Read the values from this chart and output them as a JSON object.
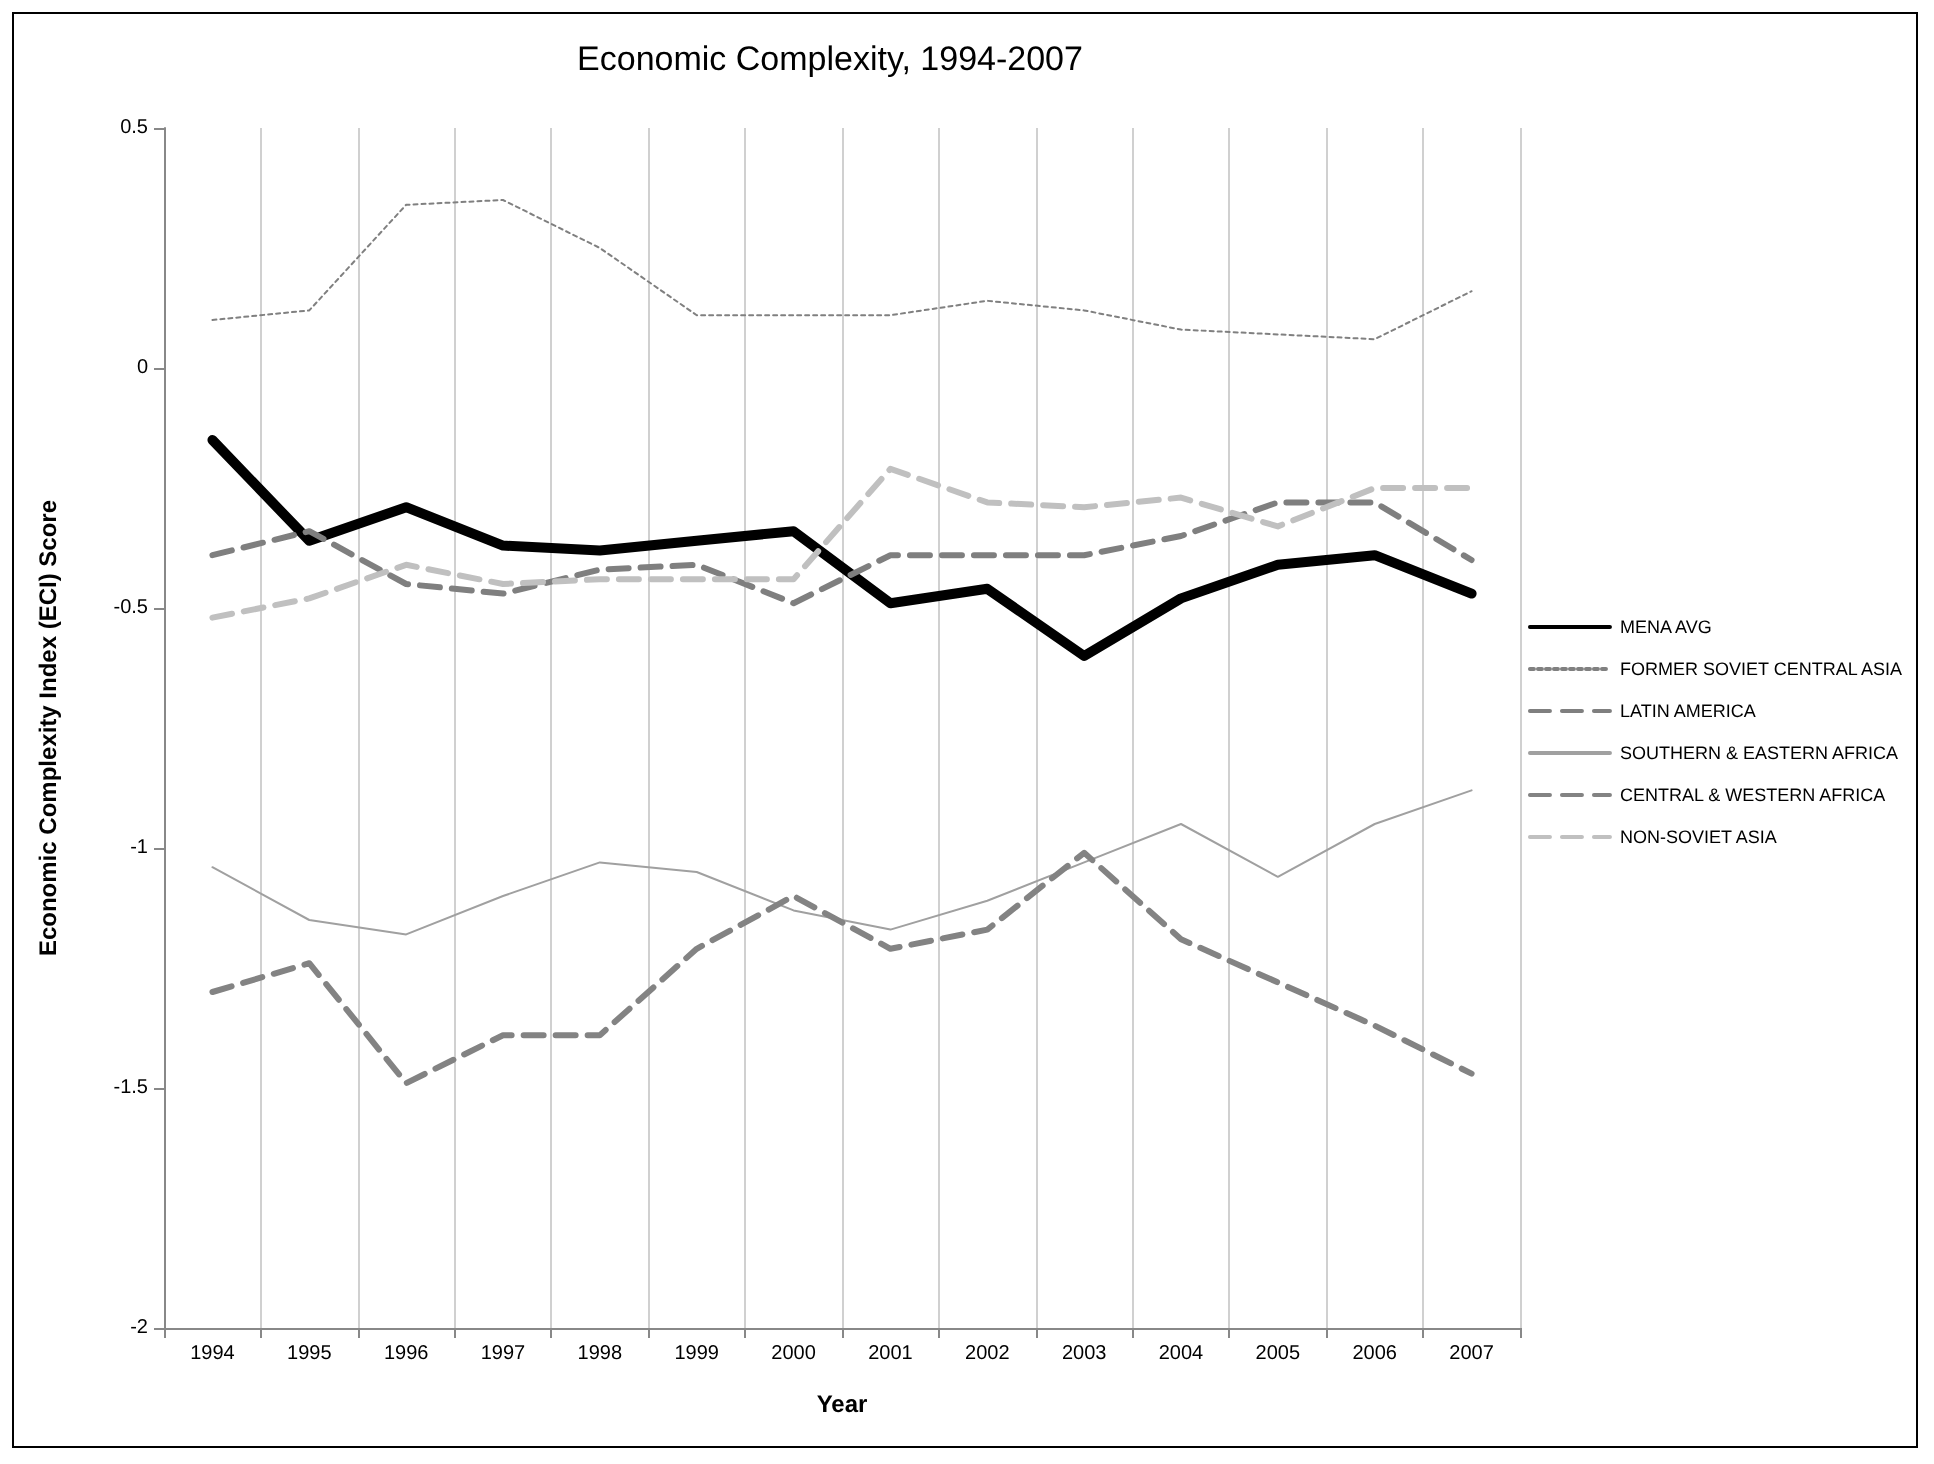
{
  "chart_data": {
    "type": "line",
    "title": "Economic Complexity, 1994-2007",
    "xlabel": "Year",
    "ylabel": "Economic Complexity Index (ECI) Score",
    "categories": [
      "1994",
      "1995",
      "1996",
      "1997",
      "1998",
      "1999",
      "2000",
      "2001",
      "2002",
      "2003",
      "2004",
      "2005",
      "2006",
      "2007"
    ],
    "ylim": [
      -2,
      0.5
    ],
    "yticks": [
      -2,
      -1.5,
      -1,
      -0.5,
      0,
      0.5
    ],
    "grid": "x",
    "legend": "right",
    "marker": "none",
    "series": [
      {
        "name": "MENA AVG",
        "color": "#000000",
        "line_style": "solid",
        "values": [
          -0.15,
          -0.36,
          -0.29,
          -0.37,
          -0.38,
          -0.36,
          -0.34,
          -0.49,
          -0.46,
          -0.6,
          -0.48,
          -0.41,
          -0.39,
          -0.47
        ]
      },
      {
        "name": "FORMER SOVIET CENTRAL ASIA",
        "color": "#808080",
        "line_style": "dotted",
        "values": [
          0.1,
          0.12,
          0.34,
          0.35,
          0.25,
          0.11,
          0.11,
          0.11,
          0.14,
          0.12,
          0.08,
          0.07,
          0.06,
          0.16
        ]
      },
      {
        "name": "LATIN AMERICA",
        "color": "#7f7f7f",
        "line_style": "dashed",
        "values": [
          -0.39,
          -0.34,
          -0.45,
          -0.47,
          -0.42,
          -0.41,
          -0.49,
          -0.39,
          -0.39,
          -0.39,
          -0.35,
          -0.28,
          -0.28,
          -0.4
        ]
      },
      {
        "name": "SOUTHERN & EASTERN AFRICA",
        "color": "#a0a0a0",
        "line_style": "solid",
        "values": [
          -1.04,
          -1.15,
          -1.18,
          -1.1,
          -1.03,
          -1.05,
          -1.13,
          -1.17,
          -1.11,
          -1.03,
          -0.95,
          -1.06,
          -0.95,
          -0.88
        ]
      },
      {
        "name": "CENTRAL & WESTERN AFRICA",
        "color": "#838383",
        "line_style": "dashed",
        "values": [
          -1.3,
          -1.24,
          -1.49,
          -1.39,
          -1.39,
          -1.21,
          -1.1,
          -1.21,
          -1.17,
          -1.01,
          -1.19,
          -1.28,
          -1.37,
          -1.47
        ]
      },
      {
        "name": "NON-SOVIET ASIA",
        "color": "#c0c0c0",
        "line_style": "dashed",
        "values": [
          -0.52,
          -0.48,
          -0.41,
          -0.45,
          -0.44,
          -0.44,
          -0.44,
          -0.21,
          -0.28,
          -0.29,
          -0.27,
          -0.33,
          -0.25,
          -0.25
        ]
      }
    ]
  }
}
